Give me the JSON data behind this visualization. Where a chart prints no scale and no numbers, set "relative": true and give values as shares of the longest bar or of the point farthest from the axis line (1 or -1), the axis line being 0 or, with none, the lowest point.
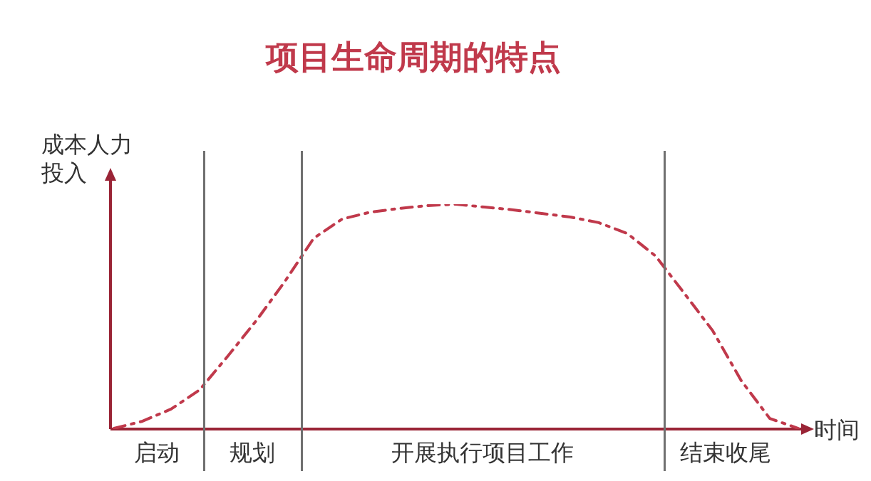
{
  "chart_data": {
    "type": "line",
    "title": "项目生命周期的特点",
    "xlabel": "时间",
    "ylabel": "成本人力投入",
    "relative": true,
    "line_style": "dashed",
    "categories": [
      null,
      null,
      null,
      null,
      null,
      null,
      null,
      null,
      null,
      null,
      null,
      null,
      null,
      null,
      null,
      null,
      null,
      null,
      null,
      null,
      null,
      null,
      null,
      null,
      null
    ],
    "series": [
      {
        "color": "#c0394b",
        "values": [
          0.003,
          0.035,
          0.089,
          0.174,
          0.326,
          0.484,
          0.658,
          0.848,
          0.934,
          0.965,
          0.981,
          0.994,
          1,
          0.987,
          0.975,
          0.959,
          0.943,
          0.918,
          0.87,
          0.769,
          0.604,
          0.437,
          0.215,
          0.047,
          0.003
        ]
      }
    ],
    "annotations": [
      "启动",
      "规划",
      "开展执行项目工作",
      "结束收尾"
    ]
  }
}
